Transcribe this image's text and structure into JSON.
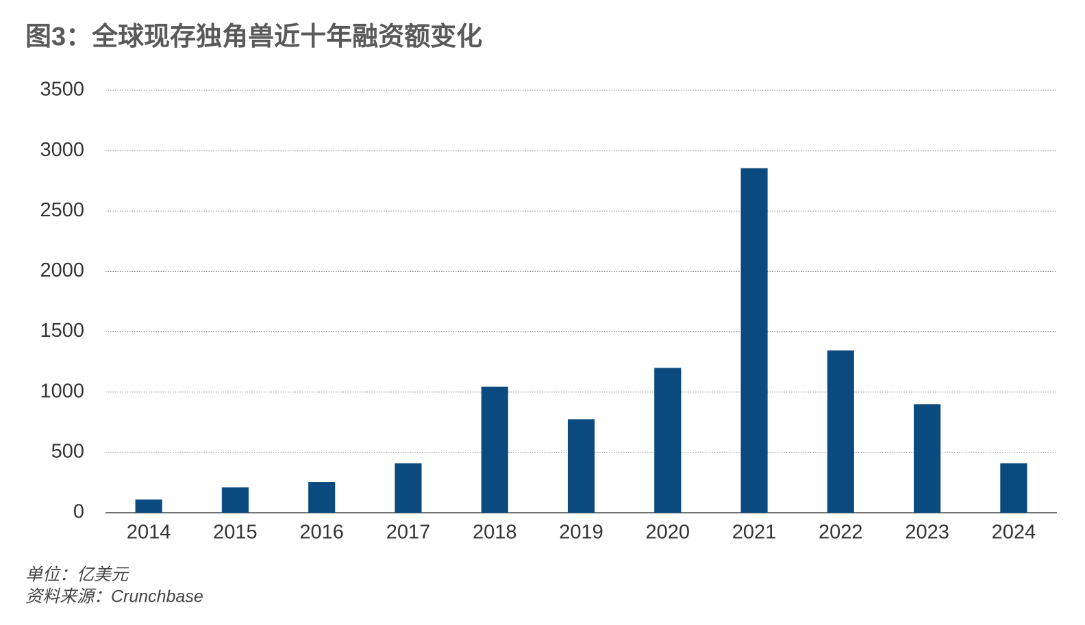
{
  "chart_data": {
    "type": "bar",
    "title": "图3：全球现存独角兽近十年融资额变化",
    "categories": [
      "2014",
      "2015",
      "2016",
      "2017",
      "2018",
      "2019",
      "2020",
      "2021",
      "2022",
      "2023",
      "2024"
    ],
    "values": [
      110,
      210,
      255,
      410,
      1045,
      775,
      1200,
      2855,
      1345,
      900,
      410
    ],
    "color": "#0b4a7e",
    "ylim": [
      0,
      3500
    ],
    "yticks": [
      0,
      500,
      1000,
      1500,
      2000,
      2500,
      3000,
      3500
    ],
    "grid": true,
    "footnotes": [
      "单位：亿美元",
      "资料来源：Crunchbase"
    ]
  }
}
